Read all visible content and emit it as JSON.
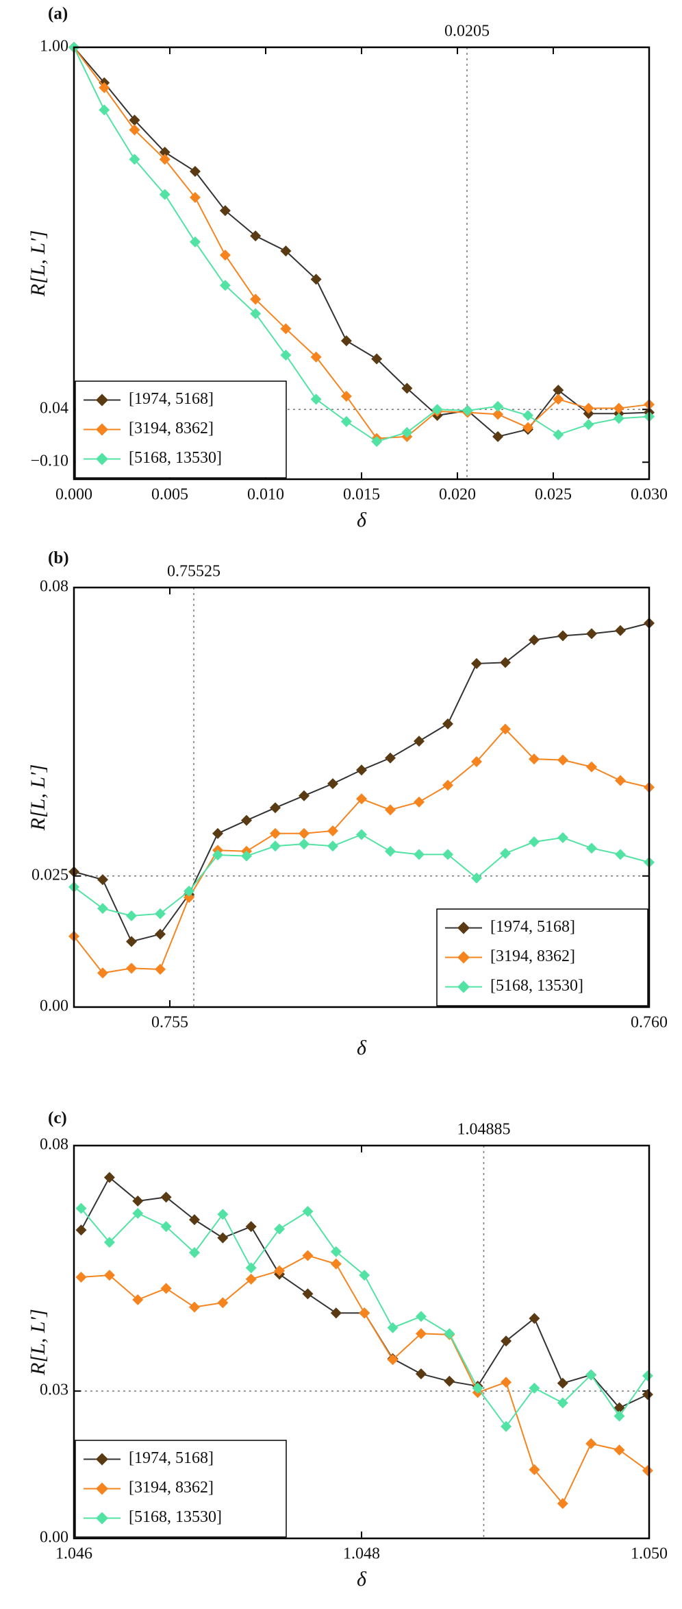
{
  "chart_data": [
    {
      "type": "line",
      "label": "(a)",
      "xlabel": "δ",
      "ylabel": "R[L, L′]",
      "x": [
        0.0,
        0.00158,
        0.00316,
        0.00474,
        0.00632,
        0.00789,
        0.00947,
        0.01105,
        0.01263,
        0.01421,
        0.01579,
        0.01737,
        0.01895,
        0.02053,
        0.02211,
        0.02368,
        0.02526,
        0.02684,
        0.02842,
        0.03
      ],
      "series": [
        {
          "name": "[1974, 5168]",
          "color": "#5a3a12",
          "values": [
            1.0,
            0.906,
            0.807,
            0.722,
            0.671,
            0.567,
            0.5,
            0.46,
            0.385,
            0.222,
            0.174,
            0.096,
            0.024,
            0.037,
            -0.032,
            -0.013,
            0.091,
            0.029,
            0.029,
            0.032
          ]
        },
        {
          "name": "[3194, 8362]",
          "color": "#f5841f",
          "values": [
            1.0,
            0.893,
            0.781,
            0.703,
            0.602,
            0.449,
            0.332,
            0.254,
            0.179,
            0.075,
            -0.037,
            -0.032,
            0.035,
            0.032,
            0.027,
            -0.008,
            0.067,
            0.043,
            0.043,
            0.053
          ]
        },
        {
          "name": "[5168, 13530]",
          "color": "#52e3a4",
          "values": [
            1.0,
            0.834,
            0.703,
            0.61,
            0.484,
            0.369,
            0.294,
            0.184,
            0.067,
            0.008,
            -0.045,
            -0.021,
            0.04,
            0.037,
            0.048,
            0.024,
            -0.027,
            0.0,
            0.016,
            0.021
          ]
        }
      ],
      "xlim": [
        0,
        0.03
      ],
      "xticks": [
        {
          "value": 0,
          "label": "0.000"
        },
        0.005,
        {
          "value": 0.01,
          "label": "0.010"
        },
        0.015,
        {
          "value": 0.02,
          "label": "0.020"
        },
        0.025,
        {
          "value": 0.03,
          "label": "0.030"
        }
      ],
      "ylim": [
        -0.145,
        1.0
      ],
      "yticks": [
        {
          "value": -0.1,
          "label": "−0.10"
        },
        0.04,
        {
          "value": 1,
          "label": "1.00"
        }
      ],
      "vline": 0.0205,
      "hline": 0.04,
      "legend": "lower left"
    },
    {
      "type": "line",
      "label": "(b)",
      "xlabel": "δ",
      "ylabel": "R[L, L′]",
      "x": [
        0.754,
        0.7543,
        0.7546,
        0.7549,
        0.7552,
        0.7555,
        0.7558,
        0.7561,
        0.7564,
        0.7567,
        0.757,
        0.7573,
        0.7576,
        0.7579,
        0.7582,
        0.7585,
        0.7588,
        0.7591,
        0.7594,
        0.7597,
        0.76
      ],
      "series": [
        {
          "name": "[1974, 5168]",
          "color": "#5a3a12",
          "values": [
            0.0258,
            0.0243,
            0.0125,
            0.0139,
            0.0215,
            0.0331,
            0.0356,
            0.038,
            0.0403,
            0.0426,
            0.0452,
            0.0475,
            0.0507,
            0.054,
            0.0655,
            0.0657,
            0.07,
            0.0708,
            0.0712,
            0.0718,
            0.0732
          ]
        },
        {
          "name": "[3194, 8362]",
          "color": "#f5841f",
          "values": [
            0.0135,
            0.0065,
            0.0074,
            0.0072,
            0.0209,
            0.0299,
            0.0297,
            0.0331,
            0.0331,
            0.0336,
            0.0397,
            0.0376,
            0.0391,
            0.0423,
            0.0468,
            0.053,
            0.0473,
            0.0471,
            0.0458,
            0.0432,
            0.0419
          ]
        },
        {
          "name": "[5168, 13530]",
          "color": "#52e3a4",
          "values": [
            0.0229,
            0.0188,
            0.0174,
            0.0178,
            0.0221,
            0.029,
            0.0288,
            0.0307,
            0.0311,
            0.0307,
            0.0329,
            0.0297,
            0.0291,
            0.0291,
            0.0246,
            0.0293,
            0.0315,
            0.0323,
            0.0303,
            0.0291,
            0.0276
          ]
        }
      ],
      "xlim": [
        0.754,
        0.76
      ],
      "xticks": [
        0.755,
        {
          "value": 0.76,
          "label": "0.760"
        }
      ],
      "ylim": [
        0,
        0.08
      ],
      "yticks": [
        {
          "value": 0,
          "label": "0.00"
        },
        0.025,
        0.08
      ],
      "vline": 0.75525,
      "hline": 0.025,
      "legend": "lower right"
    },
    {
      "type": "line",
      "label": "(c)",
      "xlabel": "δ",
      "ylabel": "R[L, L′]",
      "x": [
        1.04605,
        1.046247,
        1.046444,
        1.046641,
        1.046838,
        1.047035,
        1.047232,
        1.047429,
        1.047626,
        1.047823,
        1.04802,
        1.048217,
        1.048414,
        1.048611,
        1.048808,
        1.049005,
        1.049202,
        1.049399,
        1.049596,
        1.049793,
        1.04999
      ],
      "series": [
        {
          "name": "[1974, 5168]",
          "color": "#5a3a12",
          "values": [
            0.0628,
            0.0735,
            0.0687,
            0.0695,
            0.0649,
            0.0612,
            0.0635,
            0.0538,
            0.0498,
            0.0459,
            0.0459,
            0.0366,
            0.0335,
            0.032,
            0.031,
            0.0402,
            0.0448,
            0.0316,
            0.0333,
            0.0266,
            0.0293
          ]
        },
        {
          "name": "[3194, 8362]",
          "color": "#f5841f",
          "values": [
            0.0532,
            0.0536,
            0.0486,
            0.0509,
            0.0471,
            0.048,
            0.0528,
            0.0545,
            0.0576,
            0.0559,
            0.0459,
            0.0364,
            0.0417,
            0.0415,
            0.0297,
            0.0318,
            0.014,
            0.0071,
            0.0193,
            0.018,
            0.0138
          ]
        },
        {
          "name": "[5168, 13530]",
          "color": "#52e3a4",
          "values": [
            0.0672,
            0.0603,
            0.0662,
            0.0635,
            0.0582,
            0.066,
            0.0551,
            0.063,
            0.0666,
            0.0584,
            0.0536,
            0.0429,
            0.0452,
            0.0417,
            0.0306,
            0.0228,
            0.0306,
            0.0276,
            0.0333,
            0.0249,
            0.0331
          ]
        }
      ],
      "xlim": [
        1.046,
        1.05
      ],
      "xticks": [
        1.046,
        1.048,
        {
          "value": 1.05,
          "label": "1.050"
        }
      ],
      "ylim": [
        0,
        0.08
      ],
      "yticks": [
        {
          "value": 0,
          "label": "0.00"
        },
        0.03,
        0.08
      ],
      "vline": 1.04885,
      "hline": 0.03,
      "legend": "lower left"
    }
  ]
}
